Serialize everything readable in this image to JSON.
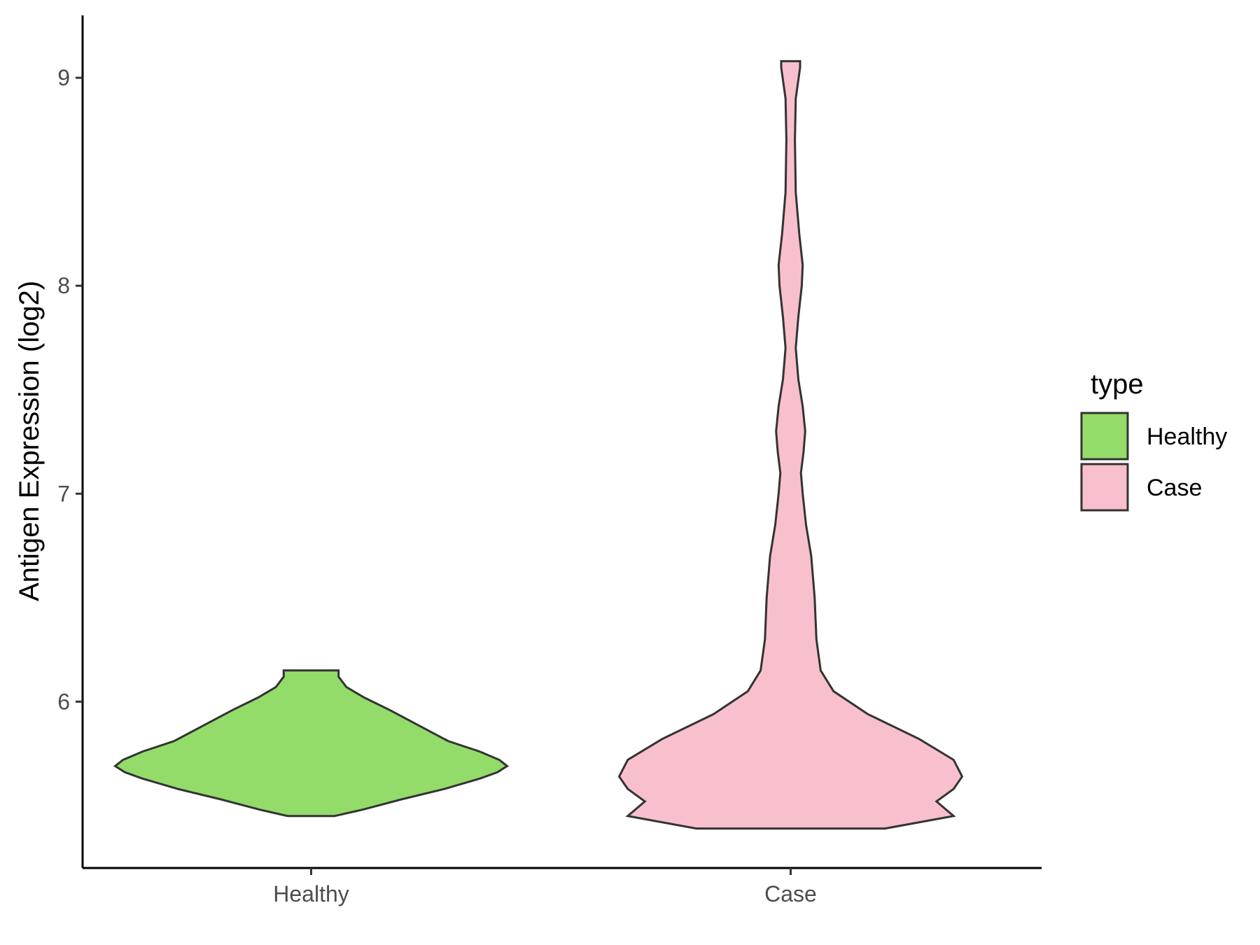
{
  "chart_data": {
    "type": "violin",
    "title": "",
    "xlabel": "",
    "ylabel": "Antigen Expression (log2)",
    "ylim": [
      5.2,
      9.3
    ],
    "yticks": [
      6,
      7,
      8,
      9
    ],
    "categories": [
      "Healthy",
      "Case"
    ],
    "legend": {
      "title": "type",
      "position": "right",
      "entries": [
        {
          "label": "Healthy",
          "color": "#93dc6a"
        },
        {
          "label": "Case",
          "color": "#f8c0cc"
        }
      ]
    },
    "grid": false,
    "series": [
      {
        "name": "Healthy",
        "color": "#93dc6a",
        "min": 5.45,
        "max": 6.15,
        "density": [
          {
            "y": 5.45,
            "hw": 0.12
          },
          {
            "y": 5.48,
            "hw": 0.26
          },
          {
            "y": 5.53,
            "hw": 0.46
          },
          {
            "y": 5.58,
            "hw": 0.68
          },
          {
            "y": 5.63,
            "hw": 0.86
          },
          {
            "y": 5.66,
            "hw": 0.95
          },
          {
            "y": 5.69,
            "hw": 1.0
          },
          {
            "y": 5.72,
            "hw": 0.96
          },
          {
            "y": 5.76,
            "hw": 0.86
          },
          {
            "y": 5.81,
            "hw": 0.7
          },
          {
            "y": 5.86,
            "hw": 0.6
          },
          {
            "y": 5.91,
            "hw": 0.5
          },
          {
            "y": 5.96,
            "hw": 0.4
          },
          {
            "y": 6.02,
            "hw": 0.27
          },
          {
            "y": 6.07,
            "hw": 0.18
          },
          {
            "y": 6.12,
            "hw": 0.14
          },
          {
            "y": 6.15,
            "hw": 0.14
          }
        ]
      },
      {
        "name": "Case",
        "color": "#f8c0cc",
        "min": 5.39,
        "max": 9.08,
        "density": [
          {
            "y": 5.39,
            "hw": 0.11
          },
          {
            "y": 5.45,
            "hw": 0.19
          },
          {
            "y": 5.52,
            "hw": 0.17
          },
          {
            "y": 5.58,
            "hw": 0.19
          },
          {
            "y": 5.64,
            "hw": 0.2
          },
          {
            "y": 5.72,
            "hw": 0.19
          },
          {
            "y": 5.82,
            "hw": 0.15
          },
          {
            "y": 5.94,
            "hw": 0.09
          },
          {
            "y": 6.05,
            "hw": 0.05
          },
          {
            "y": 6.15,
            "hw": 0.035
          },
          {
            "y": 6.3,
            "hw": 0.03
          },
          {
            "y": 6.5,
            "hw": 0.028
          },
          {
            "y": 6.7,
            "hw": 0.024
          },
          {
            "y": 6.85,
            "hw": 0.018
          },
          {
            "y": 7.0,
            "hw": 0.014
          },
          {
            "y": 7.1,
            "hw": 0.012
          },
          {
            "y": 7.2,
            "hw": 0.015
          },
          {
            "y": 7.3,
            "hw": 0.017
          },
          {
            "y": 7.42,
            "hw": 0.014
          },
          {
            "y": 7.55,
            "hw": 0.009
          },
          {
            "y": 7.7,
            "hw": 0.006
          },
          {
            "y": 7.85,
            "hw": 0.009
          },
          {
            "y": 8.0,
            "hw": 0.013
          },
          {
            "y": 8.1,
            "hw": 0.014
          },
          {
            "y": 8.25,
            "hw": 0.01
          },
          {
            "y": 8.45,
            "hw": 0.006
          },
          {
            "y": 8.7,
            "hw": 0.005
          },
          {
            "y": 8.9,
            "hw": 0.006
          },
          {
            "y": 9.05,
            "hw": 0.011
          },
          {
            "y": 9.08,
            "hw": 0.011
          }
        ]
      }
    ]
  }
}
